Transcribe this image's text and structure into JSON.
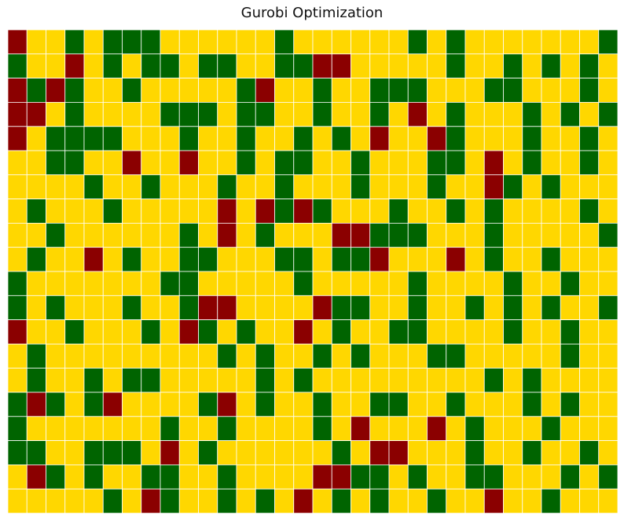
{
  "chart_data": {
    "type": "heatmap",
    "title": "Gurobi Optimization",
    "xlabel": "",
    "ylabel": "",
    "rows": 20,
    "cols": 32,
    "encoding": {
      "Y": "#FFD700",
      "G": "#006400",
      "R": "#8B0000"
    },
    "grid_lines": true,
    "grid_color": "#ffffff",
    "cells": [
      "RYYGYGGGYYYYYYGYYYYYYGYGYYYYYYYG",
      "GYYRYGYGGYGGYYGGRRYYYYYGYYGYGYGY",
      "RGRGYYGYYYYYGRYYGYYGGGYYYGGYYYGY",
      "RRYGYYYYGGGYGGYYGYYGYRYGYYYGYGYG",
      "RYGGGGYYYGYYGYYGYGYRYYRGYYYGYYGY",
      "YYGGYYRYYRYYGYGGYYGYYYGGYRYGYYGY",
      "YYYYGYYGYYYGYYGYYYGYYYGYYRGYGYYY",
      "YGYYYGYYYYYRYRGRGYYYGYYGYGYYYYGY",
      "YYGYYYYYYGYRYGYYYRRGGGYYYGYYYYYG",
      "YGYYRYGYYGGYYYGGYGGRYYYRYGYYGYYY",
      "GYYYYYYYGGYYYYYGYYYYYGYYYYGYYGYY",
      "GYGYYYGYYGRRYYYYRGGYYGYYGYGYGYYG",
      "RYYGYYYGYRGYGYYRYGYYGGYYYYGYYGYY",
      "YGYYYYYYYYYGYGYYGYGYYYGGYYYYYGYY",
      "YGYYGYGGYYYYYGYGYYYYYYYYYGYGYYYY",
      "GRGYGRYYYYGRYGYYGYYGGYYGYYYGYGYY",
      "GYYYYYYYGYYGYYYYGYRYYYRYGYYYGYYY",
      "GGYYGGGYRYGYYYYYYGYRRYYYGYYGYYGY",
      "YRGYGYYGGYYGYYYYRRGGYGYYGGYYYGYG",
      "YYYYYGYRGYYGYGYRYGYGYYGYYRYYGYYY"
    ]
  }
}
